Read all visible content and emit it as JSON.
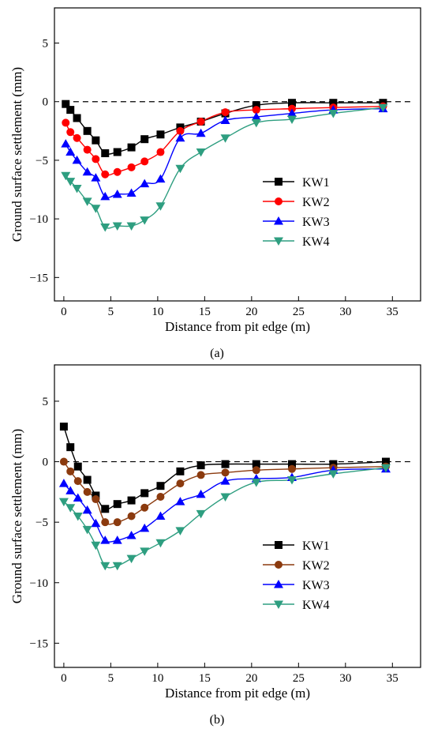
{
  "chart_data": [
    {
      "type": "line",
      "caption": "(a)",
      "xlabel": "Distance from pit edge (m)",
      "ylabel": "Ground surface settlement (mm)",
      "xlim": [
        -1,
        38
      ],
      "ylim": [
        -17,
        8
      ],
      "xticks": [
        0,
        5,
        10,
        15,
        20,
        25,
        30,
        35
      ],
      "yticks": [
        5,
        0,
        -5,
        -10,
        -15
      ],
      "xtick_labels": [
        "0",
        "5",
        "10",
        "15",
        "20",
        "25",
        "30",
        "35"
      ],
      "ytick_labels": [
        "5",
        "0",
        "−5",
        "−10",
        "−15"
      ],
      "reference_line": 0,
      "legend_position": "center-right",
      "series": [
        {
          "name": "KW1",
          "color": "#000000",
          "marker": "square",
          "x": [
            0.2,
            0.7,
            1.4,
            2.5,
            3.4,
            4.4,
            5.7,
            7.2,
            8.6,
            10.3,
            12.4,
            14.6,
            17.2,
            20.5,
            24.3,
            28.7,
            34.0
          ],
          "y": [
            -0.2,
            -0.7,
            -1.4,
            -2.5,
            -3.3,
            -4.4,
            -4.3,
            -3.9,
            -3.2,
            -2.8,
            -2.2,
            -1.7,
            -1.0,
            -0.3,
            -0.1,
            -0.1,
            -0.1
          ]
        },
        {
          "name": "KW2",
          "color": "#ff0000",
          "marker": "circle",
          "x": [
            0.2,
            0.7,
            1.4,
            2.5,
            3.4,
            4.4,
            5.7,
            7.2,
            8.6,
            10.3,
            12.4,
            14.6,
            17.2,
            20.5,
            24.3,
            28.7,
            34.0
          ],
          "y": [
            -1.8,
            -2.6,
            -3.1,
            -4.1,
            -4.9,
            -6.2,
            -6.0,
            -5.6,
            -5.1,
            -4.3,
            -2.5,
            -1.7,
            -0.9,
            -0.7,
            -0.6,
            -0.5,
            -0.4
          ]
        },
        {
          "name": "KW3",
          "color": "#0000ff",
          "marker": "triangle-up",
          "x": [
            0.2,
            0.7,
            1.4,
            2.5,
            3.4,
            4.4,
            5.7,
            7.2,
            8.6,
            10.3,
            12.4,
            14.6,
            17.2,
            20.5,
            24.3,
            28.7,
            34.0
          ],
          "y": [
            -3.6,
            -4.3,
            -5.0,
            -6.0,
            -6.5,
            -8.1,
            -7.9,
            -7.8,
            -7.0,
            -6.6,
            -3.1,
            -2.7,
            -1.6,
            -1.3,
            -1.0,
            -0.7,
            -0.6
          ]
        },
        {
          "name": "KW4",
          "color": "#2e9e80",
          "marker": "triangle-down",
          "x": [
            0.2,
            0.7,
            1.4,
            2.5,
            3.4,
            4.4,
            5.7,
            7.2,
            8.6,
            10.3,
            12.4,
            14.6,
            17.2,
            20.5,
            24.3,
            28.7,
            34.0
          ],
          "y": [
            -6.3,
            -6.8,
            -7.4,
            -8.5,
            -9.1,
            -10.7,
            -10.6,
            -10.6,
            -10.1,
            -8.9,
            -5.7,
            -4.3,
            -3.1,
            -1.8,
            -1.5,
            -1.0,
            -0.5
          ]
        }
      ]
    },
    {
      "type": "line",
      "caption": "(b)",
      "xlabel": "Distance from pit edge (m)",
      "ylabel": "Ground surface settlement (mm)",
      "xlim": [
        -1,
        38
      ],
      "ylim": [
        -17,
        8
      ],
      "xticks": [
        0,
        5,
        10,
        15,
        20,
        25,
        30,
        35
      ],
      "yticks": [
        5,
        0,
        -5,
        -10,
        -15
      ],
      "xtick_labels": [
        "0",
        "5",
        "10",
        "15",
        "20",
        "25",
        "30",
        "35"
      ],
      "ytick_labels": [
        "5",
        "0",
        "−5",
        "−10",
        "−15"
      ],
      "reference_line": 0,
      "legend_position": "center-right",
      "series": [
        {
          "name": "KW1",
          "color": "#000000",
          "marker": "square",
          "x": [
            0.0,
            0.7,
            1.5,
            2.5,
            3.4,
            4.4,
            5.7,
            7.2,
            8.6,
            10.3,
            12.4,
            14.6,
            17.2,
            20.5,
            24.3,
            28.7,
            34.3
          ],
          "y": [
            2.9,
            1.2,
            -0.4,
            -1.5,
            -2.8,
            -3.9,
            -3.5,
            -3.2,
            -2.6,
            -2.0,
            -0.8,
            -0.3,
            -0.2,
            -0.2,
            -0.2,
            -0.2,
            0.0
          ]
        },
        {
          "name": "KW2",
          "color": "#8b3a0e",
          "marker": "circle",
          "x": [
            0.0,
            0.7,
            1.5,
            2.5,
            3.4,
            4.4,
            5.7,
            7.2,
            8.6,
            10.3,
            12.4,
            14.6,
            17.2,
            20.5,
            24.3,
            28.7,
            34.3
          ],
          "y": [
            0.0,
            -0.8,
            -1.6,
            -2.5,
            -3.1,
            -5.0,
            -5.0,
            -4.5,
            -3.8,
            -2.9,
            -1.8,
            -1.1,
            -0.9,
            -0.7,
            -0.6,
            -0.5,
            -0.4
          ]
        },
        {
          "name": "KW3",
          "color": "#0000ff",
          "marker": "triangle-up",
          "x": [
            0.0,
            0.7,
            1.5,
            2.5,
            3.4,
            4.4,
            5.7,
            7.2,
            8.6,
            10.3,
            12.4,
            14.6,
            17.2,
            20.5,
            24.3,
            28.7,
            34.3
          ],
          "y": [
            -1.8,
            -2.4,
            -3.0,
            -4.0,
            -5.1,
            -6.5,
            -6.5,
            -6.1,
            -5.5,
            -4.5,
            -3.3,
            -2.7,
            -1.6,
            -1.4,
            -1.3,
            -0.7,
            -0.6
          ]
        },
        {
          "name": "KW4",
          "color": "#2e9e80",
          "marker": "triangle-down",
          "x": [
            0.0,
            0.7,
            1.5,
            2.5,
            3.4,
            4.4,
            5.7,
            7.2,
            8.6,
            10.3,
            12.4,
            14.6,
            17.2,
            20.5,
            24.3,
            28.7,
            34.3
          ],
          "y": [
            -3.3,
            -3.8,
            -4.5,
            -5.6,
            -6.9,
            -8.6,
            -8.6,
            -8.0,
            -7.4,
            -6.7,
            -5.7,
            -4.3,
            -2.9,
            -1.7,
            -1.5,
            -1.0,
            -0.5
          ]
        }
      ]
    }
  ]
}
